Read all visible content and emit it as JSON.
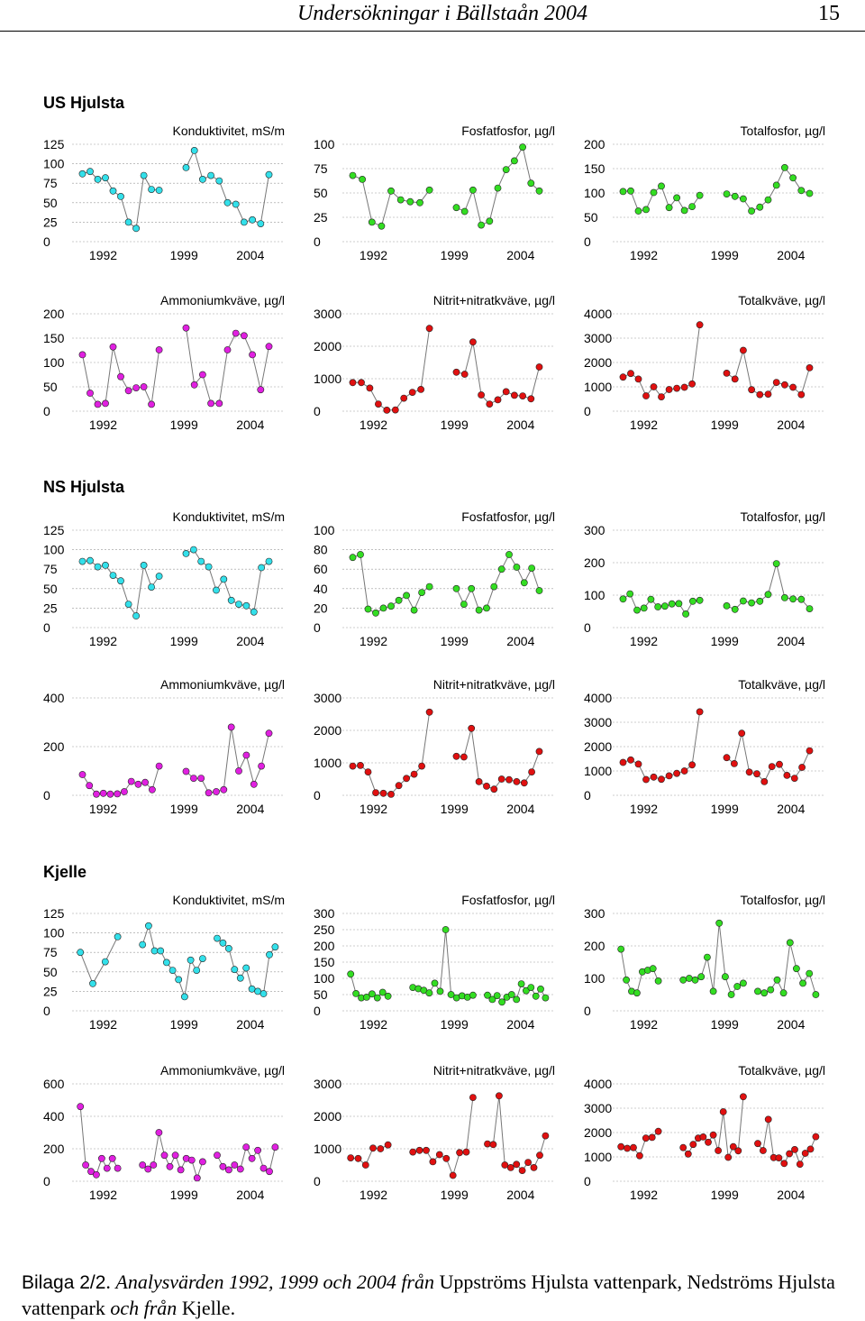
{
  "header": {
    "title": "Undersökningar i Bällstaån 2004",
    "page_number": "15"
  },
  "caption": {
    "label": "Bilaga 2/2",
    "s1": ". ",
    "s2": "Analysvärden 1992, 1999 och 2004 från",
    "s3": " Uppströms Hjulsta vattenpark, Nedströms Hjulsta vattenpark ",
    "s4": "och från",
    "s5": " Kjelle."
  },
  "sections": [
    {
      "title": "US Hjulsta"
    },
    {
      "title": "NS Hjulsta"
    },
    {
      "title": "Kjelle"
    }
  ],
  "colors": {
    "cyan": "#33e0ea",
    "green": "#33dd22",
    "magenta": "#e020e0",
    "red": "#e01010",
    "line": "#777777",
    "grid": "#999999"
  },
  "chart_data": [
    {
      "type": "line",
      "section": "US Hjulsta",
      "title": "Konduktivitet, mS/m",
      "color": "cyan",
      "yticks": [
        0,
        25,
        50,
        75,
        100,
        125
      ],
      "ylim": [
        0,
        125
      ],
      "xticks": [
        "1992",
        "1999",
        "2004"
      ],
      "series": [
        [
          87,
          90,
          80,
          82,
          65,
          58,
          25,
          17,
          85,
          67,
          66
        ],
        [
          95,
          117,
          80,
          85,
          78,
          50,
          48,
          25,
          28,
          23,
          86
        ]
      ]
    },
    {
      "type": "line",
      "section": "US Hjulsta",
      "title": "Fosfatfosfor, µg/l",
      "color": "green",
      "yticks": [
        0,
        25,
        50,
        75,
        100
      ],
      "ylim": [
        0,
        100
      ],
      "xticks": [
        "1992",
        "1999",
        "2004"
      ],
      "series": [
        [
          68,
          64,
          20,
          16,
          52,
          43,
          41,
          40,
          53
        ],
        [
          35,
          31,
          53,
          17,
          21,
          55,
          74,
          83,
          97,
          60,
          52
        ]
      ]
    },
    {
      "type": "line",
      "section": "US Hjulsta",
      "title": "Totalfosfor, µg/l",
      "color": "green",
      "yticks": [
        0,
        50,
        100,
        150,
        200
      ],
      "ylim": [
        0,
        200
      ],
      "xticks": [
        "1992",
        "1999",
        "2004"
      ],
      "series": [
        [
          103,
          104,
          63,
          66,
          101,
          114,
          70,
          90,
          64,
          72,
          95
        ],
        [
          98,
          93,
          88,
          63,
          71,
          86,
          116,
          152,
          131,
          105,
          99
        ]
      ]
    },
    {
      "type": "line",
      "section": "US Hjulsta",
      "title": "Ammoniumkväve, µg/l",
      "color": "magenta",
      "yticks": [
        0,
        50,
        100,
        150,
        200
      ],
      "ylim": [
        0,
        200
      ],
      "xticks": [
        "1992",
        "1999",
        "2004"
      ],
      "series": [
        [
          116,
          37,
          14,
          16,
          132,
          71,
          42,
          48,
          50,
          14,
          126
        ],
        [
          171,
          54,
          75,
          16,
          16,
          126,
          160,
          155,
          116,
          44,
          133
        ]
      ]
    },
    {
      "type": "line",
      "section": "US Hjulsta",
      "title": "Nitrit+nitratkväve, µg/l",
      "color": "red",
      "yticks": [
        0,
        1000,
        2000,
        3000
      ],
      "ylim": [
        0,
        3000
      ],
      "xticks": [
        "1992",
        "1999",
        "2004"
      ],
      "series": [
        [
          880,
          880,
          710,
          220,
          30,
          40,
          400,
          580,
          670,
          2550
        ],
        [
          1200,
          1140,
          2130,
          500,
          220,
          350,
          600,
          490,
          470,
          380,
          1360
        ]
      ]
    },
    {
      "type": "line",
      "section": "US Hjulsta",
      "title": "Totalkväve, µg/l",
      "color": "red",
      "yticks": [
        0,
        1000,
        2000,
        3000,
        4000
      ],
      "ylim": [
        0,
        4000
      ],
      "xticks": [
        "1992",
        "1999",
        "2004"
      ],
      "series": [
        [
          1400,
          1550,
          1320,
          630,
          1000,
          590,
          890,
          940,
          980,
          1120,
          3550
        ],
        [
          1560,
          1320,
          2500,
          880,
          680,
          700,
          1180,
          1080,
          980,
          680,
          1780
        ]
      ]
    },
    {
      "type": "line",
      "section": "NS Hjulsta",
      "title": "Konduktivitet, mS/m",
      "color": "cyan",
      "yticks": [
        0,
        25,
        50,
        75,
        100,
        125
      ],
      "ylim": [
        0,
        125
      ],
      "xticks": [
        "1992",
        "1999",
        "2004"
      ],
      "series": [
        [
          85,
          86,
          78,
          80,
          67,
          60,
          30,
          15,
          80,
          52,
          66
        ],
        [
          95,
          100,
          85,
          78,
          48,
          62,
          35,
          30,
          28,
          20,
          77,
          85
        ]
      ]
    },
    {
      "type": "line",
      "section": "NS Hjulsta",
      "title": "Fosfatfosfor, µg/l",
      "color": "green",
      "yticks": [
        0,
        20,
        40,
        60,
        80,
        100
      ],
      "ylim": [
        0,
        100
      ],
      "xticks": [
        "1992",
        "1999",
        "2004"
      ],
      "series": [
        [
          72,
          75,
          19,
          15,
          20,
          22,
          28,
          33,
          18,
          36,
          42
        ],
        [
          40,
          24,
          40,
          18,
          20,
          42,
          60,
          75,
          62,
          46,
          61,
          38
        ]
      ]
    },
    {
      "type": "line",
      "section": "NS Hjulsta",
      "title": "Totalfosfor, µg/l",
      "color": "green",
      "yticks": [
        0,
        100,
        200,
        300
      ],
      "ylim": [
        0,
        300
      ],
      "xticks": [
        "1992",
        "1999",
        "2004"
      ],
      "series": [
        [
          88,
          104,
          54,
          60,
          87,
          64,
          66,
          73,
          74,
          42,
          81,
          84
        ],
        [
          67,
          56,
          82,
          76,
          81,
          102,
          197,
          92,
          88,
          87,
          58
        ]
      ]
    },
    {
      "type": "line",
      "section": "NS Hjulsta",
      "title": "Ammoniumkväve, µg/l",
      "color": "magenta",
      "yticks": [
        0,
        200,
        400
      ],
      "ylim": [
        0,
        400
      ],
      "xticks": [
        "1992",
        "1999",
        "2004"
      ],
      "series": [
        [
          85,
          40,
          5,
          8,
          5,
          6,
          15,
          57,
          45,
          53,
          23,
          120
        ],
        [
          98,
          70,
          70,
          10,
          15,
          23,
          280,
          100,
          165,
          45,
          120,
          255
        ]
      ]
    },
    {
      "type": "line",
      "section": "NS Hjulsta",
      "title": "Nitrit+nitratkväve, µg/l",
      "color": "red",
      "yticks": [
        0,
        1000,
        2000,
        3000
      ],
      "ylim": [
        0,
        3000
      ],
      "xticks": [
        "1992",
        "1999",
        "2004"
      ],
      "series": [
        [
          900,
          920,
          720,
          80,
          60,
          30,
          300,
          520,
          650,
          900,
          2560
        ],
        [
          1200,
          1180,
          2060,
          420,
          280,
          190,
          500,
          480,
          420,
          380,
          720,
          1350
        ]
      ]
    },
    {
      "type": "line",
      "section": "NS Hjulsta",
      "title": "Totalkväve, µg/l",
      "color": "red",
      "yticks": [
        0,
        1000,
        2000,
        3000,
        4000
      ],
      "ylim": [
        0,
        4000
      ],
      "xticks": [
        "1992",
        "1999",
        "2004"
      ],
      "series": [
        [
          1350,
          1450,
          1280,
          650,
          750,
          660,
          800,
          900,
          1000,
          1250,
          3430
        ],
        [
          1550,
          1300,
          2550,
          950,
          880,
          560,
          1180,
          1270,
          820,
          700,
          1150,
          1830
        ]
      ]
    },
    {
      "type": "line",
      "section": "Kjelle",
      "title": "Konduktivitet, mS/m",
      "color": "cyan",
      "yticks": [
        0,
        25,
        50,
        75,
        100,
        125
      ],
      "ylim": [
        0,
        125
      ],
      "xticks": [
        "1992",
        "1999",
        "2004"
      ],
      "series": [
        [
          75,
          35,
          63,
          95
        ],
        [
          85,
          109,
          77,
          77,
          62,
          52,
          40,
          18,
          65,
          52,
          67
        ],
        [
          93,
          87,
          80,
          53,
          42,
          55,
          28,
          25,
          22,
          72,
          82
        ]
      ]
    },
    {
      "type": "line",
      "section": "Kjelle",
      "title": "Fosfatfosfor, µg/l",
      "color": "green",
      "yticks": [
        0,
        50,
        100,
        150,
        200,
        250,
        300
      ],
      "ylim": [
        0,
        300
      ],
      "xticks": [
        "1992",
        "1999",
        "2004"
      ],
      "series": [
        [
          113,
          53,
          40,
          42,
          52,
          40,
          57,
          45
        ],
        [
          72,
          68,
          63,
          55,
          85,
          60,
          250,
          50,
          40,
          46,
          42,
          48
        ],
        [
          48,
          35,
          47,
          27,
          42,
          50,
          35,
          83,
          62,
          72,
          45,
          67,
          40
        ]
      ]
    },
    {
      "type": "line",
      "section": "Kjelle",
      "title": "Totalfosfor, µg/l",
      "color": "green",
      "yticks": [
        0,
        100,
        200,
        300
      ],
      "ylim": [
        0,
        300
      ],
      "xticks": [
        "1992",
        "1999",
        "2004"
      ],
      "series": [
        [
          190,
          95,
          60,
          55,
          120,
          125,
          130,
          92
        ],
        [
          95,
          100,
          95,
          105,
          165,
          60,
          270,
          105,
          50,
          75,
          85
        ],
        [
          60,
          55,
          65,
          95,
          55,
          210,
          130,
          85,
          115,
          50
        ]
      ]
    },
    {
      "type": "line",
      "section": "Kjelle",
      "title": "Ammoniumkväve, µg/l",
      "color": "magenta",
      "yticks": [
        0,
        200,
        400,
        600
      ],
      "ylim": [
        0,
        600
      ],
      "xticks": [
        "1992",
        "1999",
        "2004"
      ],
      "series": [
        [
          460,
          100,
          60,
          40,
          140,
          80,
          140,
          80
        ],
        [
          100,
          75,
          100,
          300,
          160,
          90,
          160,
          70,
          140,
          130,
          20,
          120
        ],
        [
          160,
          90,
          70,
          100,
          75,
          210,
          140,
          190,
          80,
          60,
          210
        ]
      ]
    },
    {
      "type": "line",
      "section": "Kjelle",
      "title": "Nitrit+nitratkväve, µg/l",
      "color": "red",
      "yticks": [
        0,
        1000,
        2000,
        3000
      ],
      "ylim": [
        0,
        3000
      ],
      "xticks": [
        "1992",
        "1999",
        "2004"
      ],
      "series": [
        [
          720,
          700,
          500,
          1020,
          1000,
          1120
        ],
        [
          900,
          950,
          950,
          600,
          820,
          700,
          180,
          880,
          900,
          2580
        ],
        [
          1150,
          1130,
          2630,
          500,
          420,
          520,
          330,
          580,
          420,
          800,
          1400
        ]
      ]
    },
    {
      "type": "line",
      "section": "Kjelle",
      "title": "Totalkväve, µg/l",
      "color": "red",
      "yticks": [
        0,
        1000,
        2000,
        3000,
        4000
      ],
      "ylim": [
        0,
        4000
      ],
      "xticks": [
        "1992",
        "1999",
        "2004"
      ],
      "series": [
        [
          1420,
          1350,
          1380,
          1050,
          1770,
          1800,
          2050
        ],
        [
          1380,
          1120,
          1510,
          1770,
          1820,
          1600,
          1900,
          1260,
          2850,
          980,
          1420,
          1250,
          3470
        ],
        [
          1550,
          1260,
          2540,
          970,
          960,
          730,
          1130,
          1300,
          700,
          1150,
          1320,
          1830
        ]
      ]
    }
  ]
}
